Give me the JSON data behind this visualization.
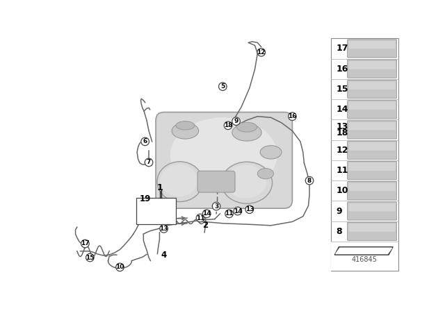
{
  "bg_color": "#ffffff",
  "line_color": "#666666",
  "part_number": "416845",
  "tank_color": "#d8d8d8",
  "tank_edge": "#999999",
  "tank_highlight": "#eeeeee",
  "right_panel_labels": [
    "17",
    "16",
    "15",
    "14",
    "13\n18",
    "12",
    "11",
    "10",
    "9",
    "8"
  ]
}
